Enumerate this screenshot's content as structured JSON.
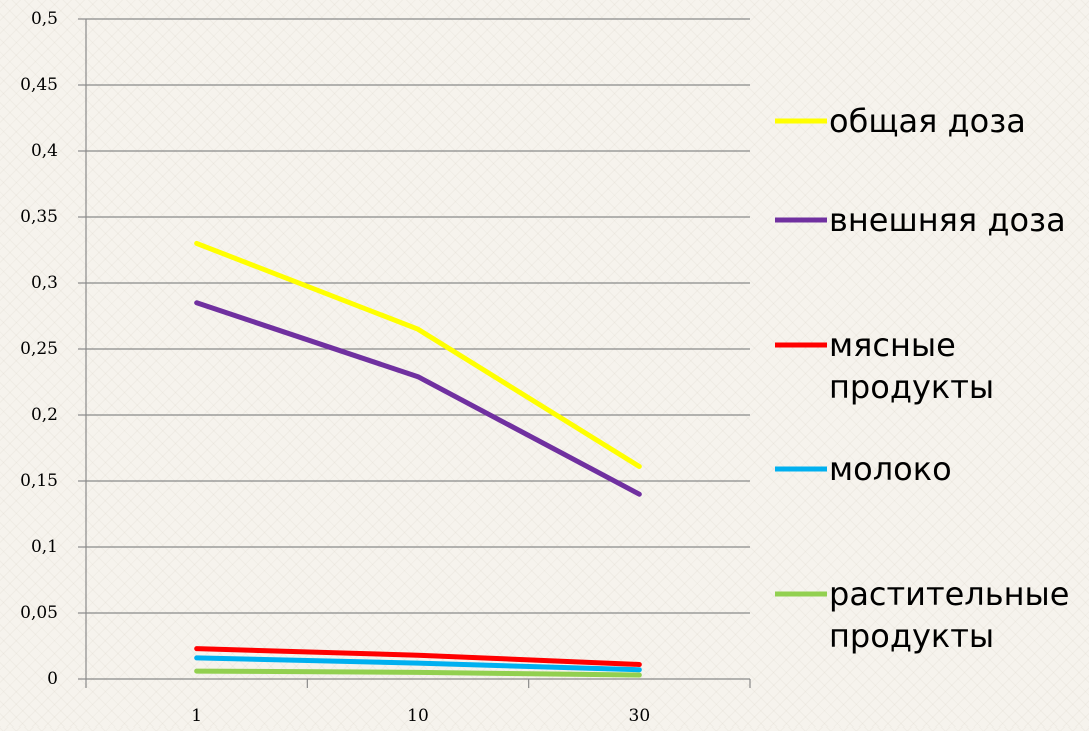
{
  "chart_data": {
    "type": "line",
    "title": "",
    "xlabel": "",
    "ylabel": "",
    "categories": [
      "1",
      "10",
      "30"
    ],
    "ylim": [
      0,
      0.5
    ],
    "y_ticks": [
      "0",
      "0,05",
      "0,1",
      "0,15",
      "0,2",
      "0,25",
      "0,3",
      "0,35",
      "0,4",
      "0,45",
      "0,5"
    ],
    "grid": "horizontal",
    "legend_position": "right",
    "series": [
      {
        "name": "общая доза",
        "legend_lines": [
          "общая доза"
        ],
        "color": "#ffff00",
        "values": [
          0.33,
          0.265,
          0.161
        ]
      },
      {
        "name": "внешняя доза",
        "legend_lines": [
          "внешняя доза"
        ],
        "color": "#7030a0",
        "values": [
          0.285,
          0.229,
          0.14
        ]
      },
      {
        "name": "мясные продукты",
        "legend_lines": [
          "мясные",
          "продукты"
        ],
        "color": "#ff0000",
        "values": [
          0.023,
          0.018,
          0.011
        ]
      },
      {
        "name": "молоко",
        "legend_lines": [
          "молоко"
        ],
        "color": "#00b0f0",
        "values": [
          0.016,
          0.012,
          0.007
        ]
      },
      {
        "name": "растительные продукты",
        "legend_lines": [
          "растительные",
          "продукты"
        ],
        "color": "#92d050",
        "values": [
          0.006,
          0.005,
          0.003
        ]
      }
    ]
  }
}
